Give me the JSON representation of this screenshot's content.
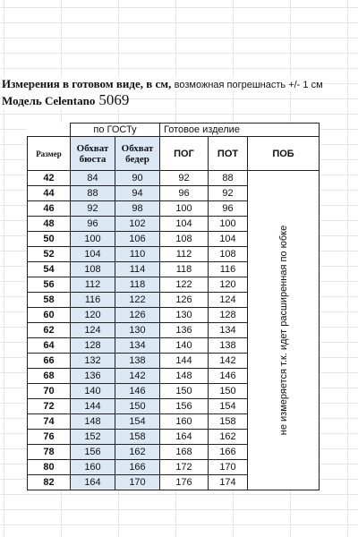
{
  "header": {
    "line1_bold": "Измерения в готовом виде, в  см,",
    "line1_small": "возможная погрешнасть +/- 1 см",
    "line2_label": "Модель Celentano",
    "line2_number": "5069"
  },
  "table": {
    "group_gost": "по ГОСТу",
    "group_ready": "Готовое изделие",
    "columns": {
      "size": "Размер",
      "bust": "Обхват бюста",
      "hips": "Обхват бедер",
      "pog": "ПОГ",
      "pot": "ПОТ",
      "pob": "ПОБ"
    },
    "pob_note": "не измеряется т.к. идет расширенная по юбке",
    "rows": [
      {
        "size": "42",
        "bust": "84",
        "hips": "90",
        "pog": "92",
        "pot": "88"
      },
      {
        "size": "44",
        "bust": "88",
        "hips": "94",
        "pog": "96",
        "pot": "92"
      },
      {
        "size": "46",
        "bust": "92",
        "hips": "98",
        "pog": "100",
        "pot": "96"
      },
      {
        "size": "48",
        "bust": "96",
        "hips": "102",
        "pog": "104",
        "pot": "100"
      },
      {
        "size": "50",
        "bust": "100",
        "hips": "106",
        "pog": "108",
        "pot": "104"
      },
      {
        "size": "52",
        "bust": "104",
        "hips": "110",
        "pog": "112",
        "pot": "108"
      },
      {
        "size": "54",
        "bust": "108",
        "hips": "114",
        "pog": "118",
        "pot": "116"
      },
      {
        "size": "56",
        "bust": "112",
        "hips": "118",
        "pog": "122",
        "pot": "120"
      },
      {
        "size": "58",
        "bust": "116",
        "hips": "122",
        "pog": "126",
        "pot": "124"
      },
      {
        "size": "60",
        "bust": "120",
        "hips": "126",
        "pog": "130",
        "pot": "128"
      },
      {
        "size": "62",
        "bust": "124",
        "hips": "130",
        "pog": "136",
        "pot": "134"
      },
      {
        "size": "64",
        "bust": "128",
        "hips": "134",
        "pog": "140",
        "pot": "138"
      },
      {
        "size": "66",
        "bust": "132",
        "hips": "138",
        "pog": "144",
        "pot": "142"
      },
      {
        "size": "68",
        "bust": "136",
        "hips": "142",
        "pog": "148",
        "pot": "146"
      },
      {
        "size": "70",
        "bust": "140",
        "hips": "146",
        "pog": "150",
        "pot": "150"
      },
      {
        "size": "72",
        "bust": "144",
        "hips": "150",
        "pog": "156",
        "pot": "154"
      },
      {
        "size": "74",
        "bust": "148",
        "hips": "154",
        "pog": "160",
        "pot": "158"
      },
      {
        "size": "76",
        "bust": "152",
        "hips": "158",
        "pog": "164",
        "pot": "162"
      },
      {
        "size": "78",
        "bust": "156",
        "hips": "162",
        "pog": "168",
        "pot": "166"
      },
      {
        "size": "80",
        "bust": "160",
        "hips": "166",
        "pog": "172",
        "pot": "170"
      },
      {
        "size": "82",
        "bust": "164",
        "hips": "170",
        "pog": "176",
        "pot": "174"
      }
    ]
  },
  "colors": {
    "highlight": "#dbe8f4",
    "border": "#222222"
  }
}
